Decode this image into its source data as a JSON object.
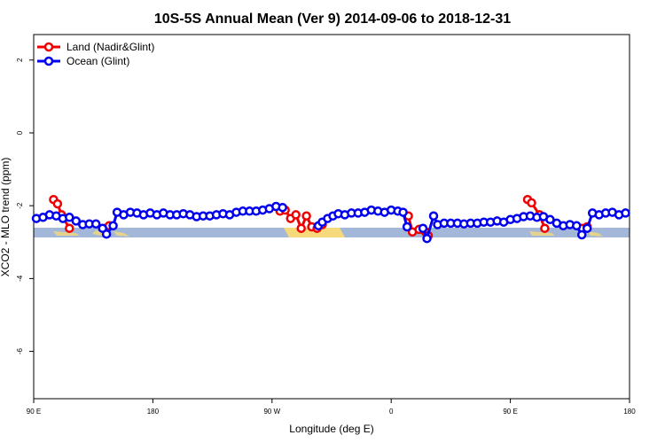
{
  "chart_data": {
    "type": "line",
    "title": "10S-5S Annual Mean (Ver 9)   2014-09-06 to 2018-12-31",
    "xlabel": "Longitude (deg E)",
    "ylabel": "XCO2 - MLO trend (ppm)",
    "xlim": [
      90,
      540
    ],
    "ylim": [
      -7.3,
      2.7
    ],
    "x_ticks": [
      {
        "value": 90,
        "label": "90 E"
      },
      {
        "value": 180,
        "label": "180"
      },
      {
        "value": 270,
        "label": "90 W"
      },
      {
        "value": 360,
        "label": "0"
      },
      {
        "value": 450,
        "label": "90 E"
      },
      {
        "value": 540,
        "label": "180"
      }
    ],
    "y_ticks": [
      {
        "value": 2,
        "label": "2"
      },
      {
        "value": 0,
        "label": "0"
      },
      {
        "value": -2,
        "label": "-2"
      },
      {
        "value": -4,
        "label": "-4"
      },
      {
        "value": -6,
        "label": "-6"
      }
    ],
    "legend_position": "top-left",
    "colors": {
      "land": "#ee0000",
      "ocean": "#0000ee",
      "map_ocean": "#a3b8d8",
      "map_land": "#f5d97a"
    },
    "series": [
      {
        "name": "Land (Nadir&Glint)",
        "color": "#ee0000",
        "points": [
          [
            105,
            -1.83
          ],
          [
            108,
            -1.95
          ],
          [
            111,
            -2.25
          ],
          [
            117,
            -2.62
          ],
          [
            144,
            -2.62
          ],
          [
            147,
            -2.55
          ],
          [
            276,
            -2.15
          ],
          [
            280,
            -2.12
          ],
          [
            284,
            -2.35
          ],
          [
            288,
            -2.25
          ],
          [
            292,
            -2.62
          ],
          [
            296,
            -2.28
          ],
          [
            300,
            -2.58
          ],
          [
            304,
            -2.62
          ],
          [
            308,
            -2.52
          ],
          [
            373,
            -2.28
          ],
          [
            376,
            -2.72
          ],
          [
            381,
            -2.65
          ],
          [
            386,
            -2.72
          ],
          [
            388,
            -2.82
          ],
          [
            463,
            -1.83
          ],
          [
            466,
            -1.92
          ],
          [
            472,
            -2.25
          ],
          [
            476,
            -2.62
          ],
          [
            504,
            -2.62
          ],
          [
            508,
            -2.58
          ]
        ],
        "segments": [
          [
            0,
            4
          ],
          [
            4,
            6
          ],
          [
            6,
            15
          ],
          [
            15,
            20
          ],
          [
            20,
            24
          ],
          [
            24,
            26
          ]
        ]
      },
      {
        "name": "Ocean (Glint)",
        "color": "#0000ee",
        "points": [
          [
            92,
            -2.35
          ],
          [
            97,
            -2.32
          ],
          [
            102,
            -2.25
          ],
          [
            107,
            -2.28
          ],
          [
            112,
            -2.35
          ],
          [
            117,
            -2.32
          ],
          [
            122,
            -2.42
          ],
          [
            127,
            -2.52
          ],
          [
            132,
            -2.5
          ],
          [
            137,
            -2.5
          ],
          [
            142,
            -2.62
          ],
          [
            145,
            -2.78
          ],
          [
            150,
            -2.55
          ],
          [
            153,
            -2.18
          ],
          [
            158,
            -2.25
          ],
          [
            163,
            -2.18
          ],
          [
            168,
            -2.2
          ],
          [
            173,
            -2.25
          ],
          [
            178,
            -2.2
          ],
          [
            183,
            -2.25
          ],
          [
            188,
            -2.2
          ],
          [
            193,
            -2.25
          ],
          [
            198,
            -2.25
          ],
          [
            203,
            -2.22
          ],
          [
            208,
            -2.25
          ],
          [
            213,
            -2.3
          ],
          [
            218,
            -2.28
          ],
          [
            223,
            -2.28
          ],
          [
            228,
            -2.25
          ],
          [
            233,
            -2.22
          ],
          [
            238,
            -2.25
          ],
          [
            243,
            -2.18
          ],
          [
            248,
            -2.15
          ],
          [
            253,
            -2.15
          ],
          [
            258,
            -2.15
          ],
          [
            263,
            -2.12
          ],
          [
            268,
            -2.08
          ],
          [
            273,
            -2.02
          ],
          [
            278,
            -2.05
          ],
          [
            305,
            -2.55
          ],
          [
            308,
            -2.45
          ],
          [
            312,
            -2.35
          ],
          [
            316,
            -2.28
          ],
          [
            320,
            -2.22
          ],
          [
            325,
            -2.25
          ],
          [
            330,
            -2.2
          ],
          [
            335,
            -2.2
          ],
          [
            340,
            -2.18
          ],
          [
            345,
            -2.12
          ],
          [
            350,
            -2.15
          ],
          [
            355,
            -2.18
          ],
          [
            360,
            -2.12
          ],
          [
            365,
            -2.15
          ],
          [
            369,
            -2.18
          ],
          [
            372,
            -2.58
          ],
          [
            384,
            -2.62
          ],
          [
            387,
            -2.9
          ],
          [
            392,
            -2.28
          ],
          [
            395,
            -2.52
          ],
          [
            400,
            -2.48
          ],
          [
            405,
            -2.48
          ],
          [
            410,
            -2.48
          ],
          [
            415,
            -2.5
          ],
          [
            420,
            -2.48
          ],
          [
            425,
            -2.48
          ],
          [
            430,
            -2.45
          ],
          [
            435,
            -2.45
          ],
          [
            440,
            -2.42
          ],
          [
            445,
            -2.45
          ],
          [
            450,
            -2.38
          ],
          [
            455,
            -2.35
          ],
          [
            460,
            -2.3
          ],
          [
            465,
            -2.28
          ],
          [
            470,
            -2.32
          ],
          [
            475,
            -2.3
          ],
          [
            480,
            -2.38
          ],
          [
            485,
            -2.48
          ],
          [
            490,
            -2.55
          ],
          [
            495,
            -2.52
          ],
          [
            500,
            -2.55
          ],
          [
            504,
            -2.8
          ],
          [
            508,
            -2.62
          ],
          [
            512,
            -2.2
          ],
          [
            517,
            -2.25
          ],
          [
            522,
            -2.2
          ],
          [
            527,
            -2.18
          ],
          [
            532,
            -2.25
          ],
          [
            537,
            -2.2
          ]
        ],
        "segments": [
          [
            0,
            39
          ],
          [
            39,
            55
          ],
          [
            55,
            89
          ]
        ]
      }
    ]
  }
}
